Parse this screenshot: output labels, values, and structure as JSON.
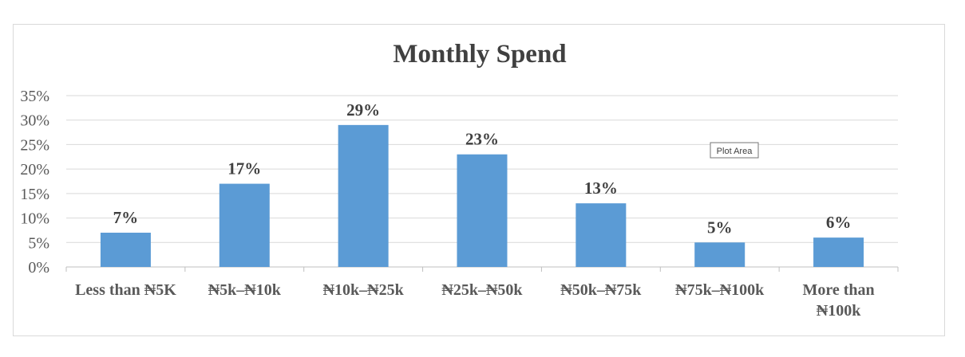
{
  "tooltip": "Plot Area",
  "colors": {
    "bar": "#5b9bd5",
    "grid": "#d9d9d9",
    "text": "#404040",
    "axis_text": "#595959"
  },
  "chart_data": {
    "type": "bar",
    "title": "Monthly Spend",
    "categories": [
      [
        "Less than ₦5K"
      ],
      [
        "₦5k–₦10k"
      ],
      [
        "₦10k–₦25k"
      ],
      [
        "₦25k–₦50k"
      ],
      [
        "₦50k–₦75k"
      ],
      [
        "₦75k–₦100k"
      ],
      [
        "More than",
        "₦100k"
      ]
    ],
    "values": [
      7,
      17,
      29,
      23,
      13,
      5,
      6
    ],
    "data_labels": [
      "7%",
      "17%",
      "29%",
      "23%",
      "13%",
      "5%",
      "6%"
    ],
    "ylim": [
      0,
      35
    ],
    "yticks": [
      "0%",
      "5%",
      "10%",
      "15%",
      "20%",
      "25%",
      "30%",
      "35%"
    ],
    "ytick_values": [
      0,
      5,
      10,
      15,
      20,
      25,
      30,
      35
    ],
    "grid": true,
    "xlabel": "",
    "ylabel": ""
  }
}
